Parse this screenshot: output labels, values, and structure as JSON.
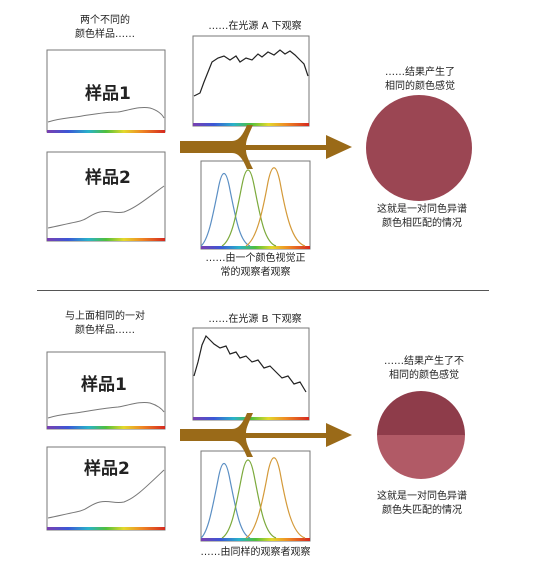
{
  "top": {
    "intro": "两个不同的\n颜色样品……",
    "sample1_label": "样品1",
    "sample2_label": "样品2",
    "light_caption": "……在光源 A 下观察",
    "observer_caption": "……由一个颜色视觉正\n常的观察者观察",
    "result_caption": "……结果产生了\n相同的颜色感觉",
    "conclusion": "这就是一对同色异谱\n颜色相匹配的情况",
    "result_color": "#9b4653"
  },
  "bottom": {
    "intro": "与上面相同的一对\n颜色样品……",
    "sample1_label": "样品1",
    "sample2_label": "样品2",
    "light_caption": "……在光源 B 下观察",
    "observer_caption": "……由同样的观察者观察",
    "result_caption": "……结果产生了不\n相同的颜色感觉",
    "conclusion": "这就是一对同色异谱\n颜色失匹配的情况",
    "result_color_top": "#8e3c4a",
    "result_color_bottom": "#b15a66"
  },
  "colors": {
    "arrow": "#9a6a18",
    "curve_blue": "#5b8fc4",
    "curve_green": "#7caa3c",
    "curve_orange": "#d49a3a"
  }
}
